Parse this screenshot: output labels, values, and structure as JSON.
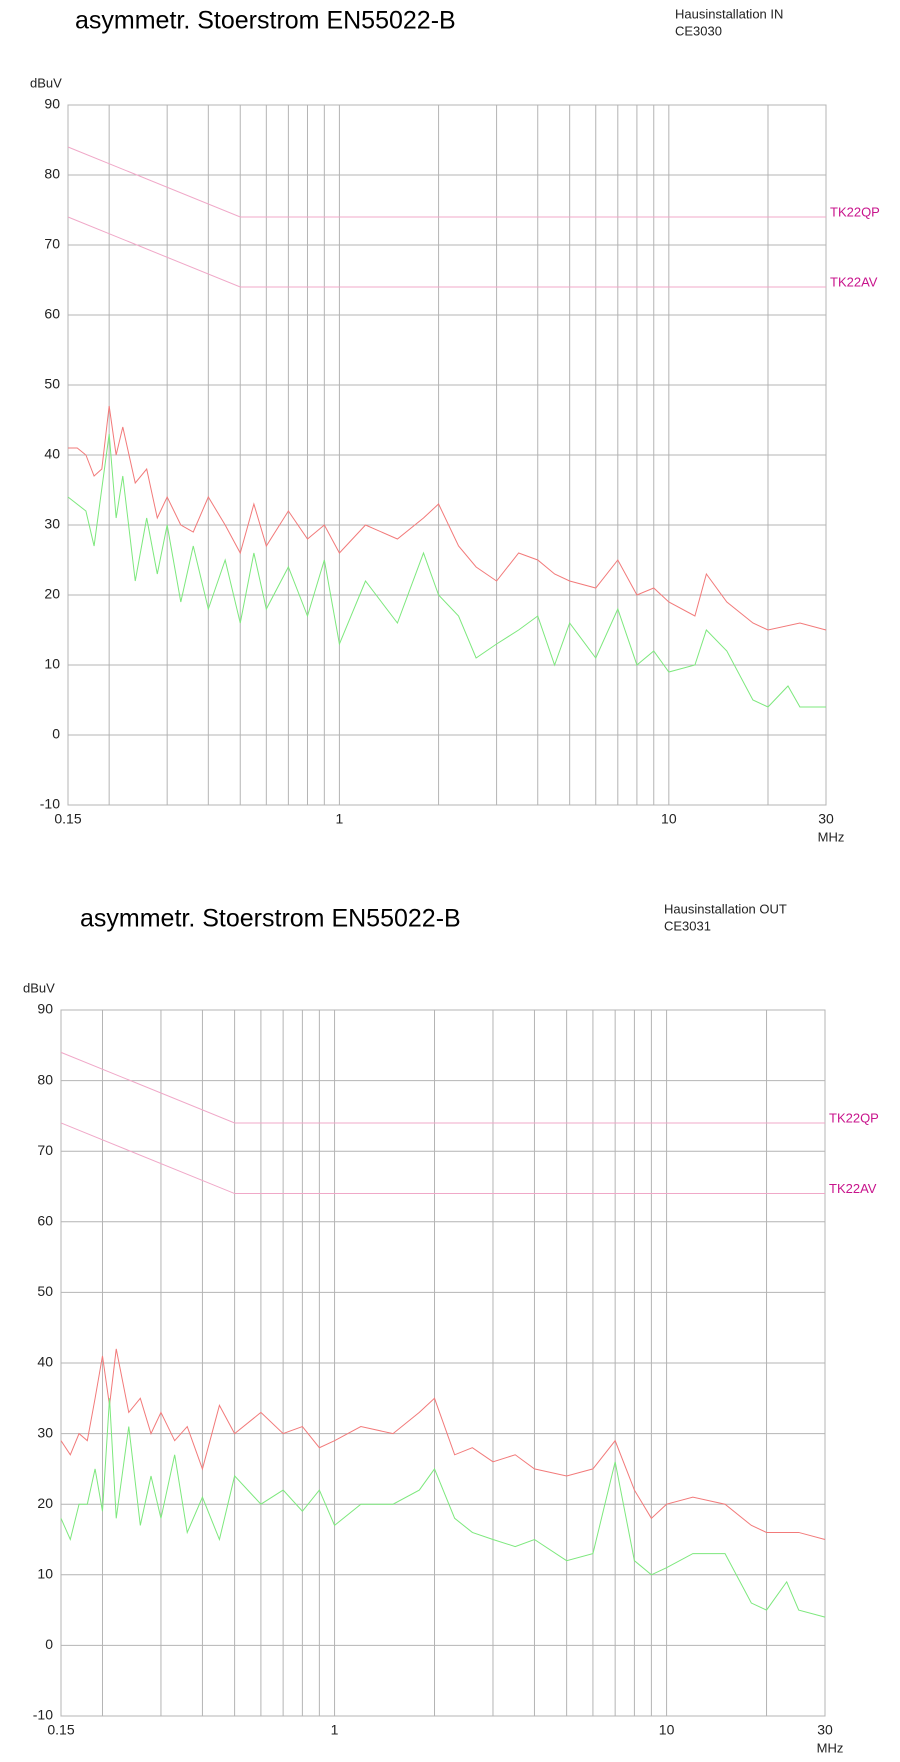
{
  "chart_data": [
    {
      "type": "line",
      "title": "asymmetr. Stoerstrom EN55022-B",
      "notes": [
        "Hausinstallation IN",
        "CE3030"
      ],
      "ylabel": "dBuV",
      "xlabel": "MHz",
      "xscale": "log",
      "xlim": [
        0.15,
        30
      ],
      "xticks": [
        0.15,
        1,
        10,
        30
      ],
      "xgrid": [
        0.2,
        0.3,
        0.4,
        0.5,
        0.6,
        0.7,
        0.8,
        0.9,
        2,
        3,
        4,
        5,
        6,
        7,
        8,
        9,
        20
      ],
      "ylim": [
        -10,
        90
      ],
      "yticks": [
        -10,
        0,
        10,
        20,
        30,
        40,
        50,
        60,
        70,
        80,
        90
      ],
      "grid": true,
      "series": [
        {
          "name": "TK22QP",
          "color": "#f0a8c8",
          "label_color": "#c8148c",
          "x": [
            0.15,
            0.5,
            30
          ],
          "values": [
            84,
            74,
            74
          ]
        },
        {
          "name": "TK22AV",
          "color": "#f0a8c8",
          "label_color": "#c8148c",
          "x": [
            0.15,
            0.5,
            30
          ],
          "values": [
            74,
            64,
            64
          ]
        },
        {
          "color": "#f27a7a",
          "x": [
            0.15,
            0.16,
            0.17,
            0.18,
            0.19,
            0.2,
            0.21,
            0.22,
            0.24,
            0.26,
            0.28,
            0.3,
            0.33,
            0.36,
            0.4,
            0.45,
            0.5,
            0.55,
            0.6,
            0.7,
            0.8,
            0.9,
            1,
            1.2,
            1.5,
            1.8,
            2,
            2.3,
            2.6,
            3,
            3.5,
            4,
            4.5,
            5,
            6,
            7,
            8,
            9,
            10,
            12,
            13,
            15,
            18,
            20,
            25,
            30
          ],
          "values": [
            41,
            41,
            40,
            37,
            38,
            47,
            40,
            44,
            36,
            38,
            31,
            34,
            30,
            29,
            34,
            30,
            26,
            33,
            27,
            32,
            28,
            30,
            26,
            30,
            28,
            31,
            33,
            27,
            24,
            22,
            26,
            25,
            23,
            22,
            21,
            25,
            20,
            21,
            19,
            17,
            23,
            19,
            16,
            15,
            16,
            15
          ]
        },
        {
          "color": "#7de87d",
          "x": [
            0.15,
            0.17,
            0.18,
            0.2,
            0.21,
            0.22,
            0.24,
            0.26,
            0.28,
            0.3,
            0.33,
            0.36,
            0.4,
            0.45,
            0.5,
            0.55,
            0.6,
            0.7,
            0.8,
            0.9,
            1,
            1.2,
            1.5,
            1.8,
            2,
            2.3,
            2.6,
            3,
            3.5,
            4,
            4.5,
            5,
            6,
            7,
            8,
            9,
            10,
            12,
            13,
            15,
            18,
            20,
            23,
            25,
            30
          ],
          "values": [
            34,
            32,
            27,
            43,
            31,
            37,
            22,
            31,
            23,
            30,
            19,
            27,
            18,
            25,
            16,
            26,
            18,
            24,
            17,
            25,
            13,
            22,
            16,
            26,
            20,
            17,
            11,
            13,
            15,
            17,
            10,
            16,
            11,
            18,
            10,
            12,
            9,
            10,
            15,
            12,
            5,
            4,
            7,
            4,
            4
          ]
        }
      ]
    },
    {
      "type": "line",
      "title": "asymmetr. Stoerstrom EN55022-B",
      "notes": [
        "Hausinstallation OUT",
        "CE3031"
      ],
      "ylabel": "dBuV",
      "xlabel": "MHz",
      "xscale": "log",
      "xlim": [
        0.15,
        30
      ],
      "xticks": [
        0.15,
        1,
        10,
        30
      ],
      "xgrid": [
        0.2,
        0.3,
        0.4,
        0.5,
        0.6,
        0.7,
        0.8,
        0.9,
        2,
        3,
        4,
        5,
        6,
        7,
        8,
        9,
        20
      ],
      "ylim": [
        -10,
        90
      ],
      "yticks": [
        -10,
        0,
        10,
        20,
        30,
        40,
        50,
        60,
        70,
        80,
        90
      ],
      "grid": true,
      "series": [
        {
          "name": "TK22QP",
          "color": "#f0a8c8",
          "label_color": "#c8148c",
          "x": [
            0.15,
            0.5,
            30
          ],
          "values": [
            84,
            74,
            74
          ]
        },
        {
          "name": "TK22AV",
          "color": "#f0a8c8",
          "label_color": "#c8148c",
          "x": [
            0.15,
            0.5,
            30
          ],
          "values": [
            74,
            64,
            64
          ]
        },
        {
          "color": "#f27a7a",
          "x": [
            0.15,
            0.16,
            0.17,
            0.18,
            0.19,
            0.2,
            0.21,
            0.22,
            0.24,
            0.26,
            0.28,
            0.3,
            0.33,
            0.36,
            0.4,
            0.45,
            0.5,
            0.6,
            0.7,
            0.8,
            0.9,
            1,
            1.2,
            1.5,
            1.8,
            2,
            2.3,
            2.6,
            3,
            3.5,
            4,
            5,
            6,
            7,
            8,
            9,
            10,
            12,
            15,
            18,
            20,
            25,
            30
          ],
          "values": [
            29,
            27,
            30,
            29,
            35,
            41,
            34,
            42,
            33,
            35,
            30,
            33,
            29,
            31,
            25,
            34,
            30,
            33,
            30,
            31,
            28,
            29,
            31,
            30,
            33,
            35,
            27,
            28,
            26,
            27,
            25,
            24,
            25,
            29,
            22,
            18,
            20,
            21,
            20,
            17,
            16,
            16,
            15
          ]
        },
        {
          "color": "#7de87d",
          "x": [
            0.15,
            0.16,
            0.17,
            0.18,
            0.19,
            0.2,
            0.21,
            0.22,
            0.24,
            0.26,
            0.28,
            0.3,
            0.33,
            0.36,
            0.4,
            0.45,
            0.5,
            0.6,
            0.7,
            0.8,
            0.9,
            1,
            1.2,
            1.5,
            1.8,
            2,
            2.3,
            2.6,
            3,
            3.5,
            4,
            5,
            6,
            7,
            8,
            9,
            10,
            12,
            15,
            18,
            20,
            23,
            25,
            30
          ],
          "values": [
            18,
            15,
            20,
            20,
            25,
            19,
            35,
            18,
            31,
            17,
            24,
            18,
            27,
            16,
            21,
            15,
            24,
            20,
            22,
            19,
            22,
            17,
            20,
            20,
            22,
            25,
            18,
            16,
            15,
            14,
            15,
            12,
            13,
            26,
            12,
            10,
            11,
            13,
            13,
            6,
            5,
            9,
            5,
            4
          ]
        }
      ]
    }
  ]
}
